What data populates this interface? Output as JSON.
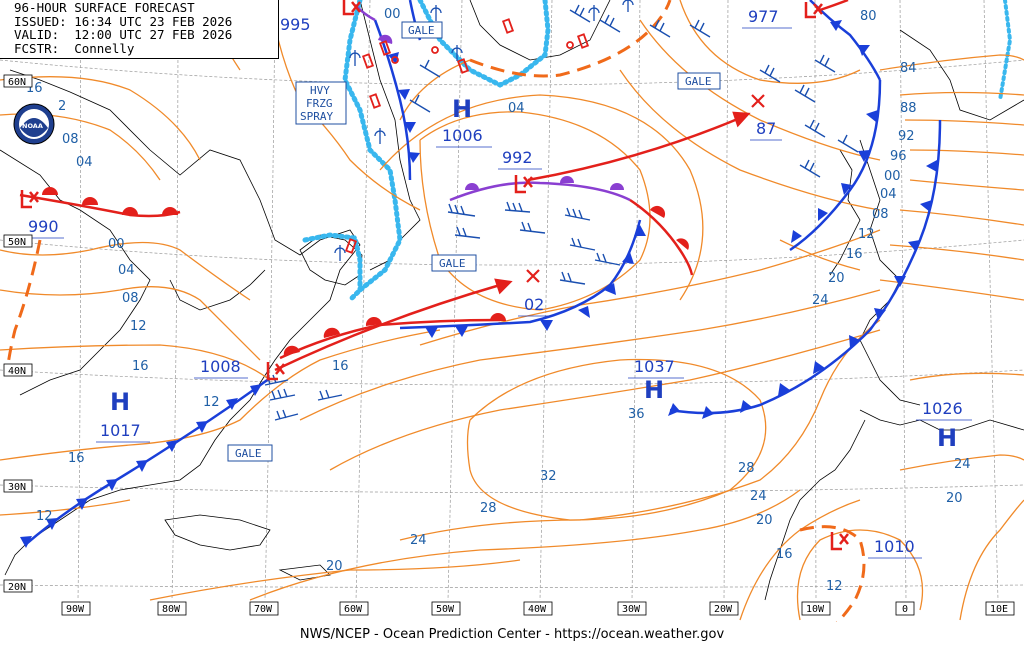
{
  "header": {
    "title": "96-HOUR SURFACE FORECAST",
    "issued": "ISSUED: 16:34 UTC 23 FEB 2026",
    "valid": "VALID:  12:00 UTC 27 FEB 2026",
    "forecaster": "FCSTR:  Connelly"
  },
  "footer": {
    "credit": "NWS/NCEP - Ocean Prediction Center - https://ocean.weather.gov"
  },
  "logo": {
    "text": "NOAA"
  },
  "lon_labels": [
    "90W",
    "80W",
    "70W",
    "60W",
    "50W",
    "40W",
    "30W",
    "20W",
    "10W",
    "0",
    "10E"
  ],
  "lat_labels": [
    "60N",
    "50N",
    "40N",
    "30N",
    "20N"
  ],
  "pressure_centers": [
    {
      "type": "H",
      "value": "1017"
    },
    {
      "type": "L",
      "value": "1008"
    },
    {
      "type": "L",
      "value": "990"
    },
    {
      "type": "H",
      "value": "1006"
    },
    {
      "type": "L",
      "value": "992"
    },
    {
      "type": "X",
      "value": "02"
    },
    {
      "type": "X",
      "value": "87"
    },
    {
      "type": "L",
      "value": "977"
    },
    {
      "type": "L",
      "value": "995"
    },
    {
      "type": "H",
      "value": "1037"
    },
    {
      "type": "H",
      "value": "1026"
    },
    {
      "type": "L",
      "value": "1010"
    }
  ],
  "isobar_labels": [
    "16",
    "2",
    "08",
    "04",
    "00",
    "04",
    "08",
    "12",
    "16",
    "12",
    "16",
    "12",
    "16",
    "20",
    "24",
    "28",
    "32",
    "36",
    "28",
    "24",
    "20",
    "16",
    "12",
    "24",
    "20",
    "00",
    "04",
    "80",
    "84",
    "88",
    "92",
    "96",
    "00",
    "04",
    "08",
    "12",
    "16",
    "20",
    "24"
  ],
  "tags": {
    "gale1": "GALE",
    "gale2": "GALE",
    "gale3": "GALE",
    "gale4": "GALE",
    "hvy": [
      "HVY",
      "FRZG",
      "SPRAY"
    ]
  },
  "colors": {
    "isobar": "#f08a2a",
    "cold_front": "#1a3fd9",
    "warm_front": "#e3201b",
    "occluded": "#8a3fd1",
    "ice": "#39b7ee",
    "land": "#000000",
    "grid": "#9a9a9a"
  }
}
